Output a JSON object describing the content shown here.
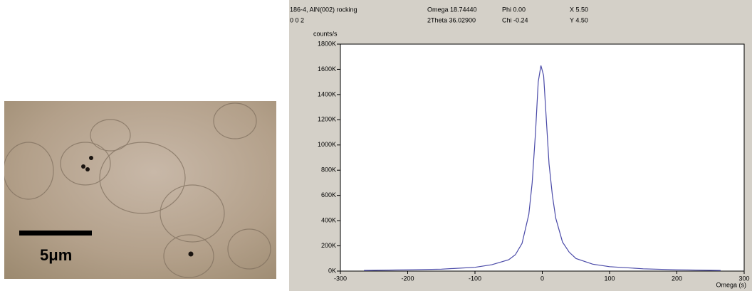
{
  "micrograph": {
    "scale_label": "5μm"
  },
  "header": {
    "sample": "186-4, AlN(002) rocking",
    "hkl": "0 0 2",
    "omega": "Omega 18.74440",
    "two_theta": "2Theta 36.02900",
    "phi": "Phi 0.00",
    "chi": "Chi -0.24",
    "x_pos": "X 5.50",
    "y_pos": "Y 4.50"
  },
  "chart_data": {
    "type": "line",
    "ylabel": "counts/s",
    "xlabel": "Omega (s)",
    "color": "#4a4aa8",
    "x": [
      -265,
      -200,
      -150,
      -100,
      -75,
      -50,
      -40,
      -30,
      -20,
      -15,
      -10,
      -6,
      -2,
      2,
      6,
      10,
      15,
      20,
      30,
      40,
      50,
      75,
      100,
      150,
      200,
      265
    ],
    "values": [
      5000,
      10000,
      15000,
      30000,
      50000,
      90000,
      130000,
      220000,
      450000,
      700000,
      1100000,
      1500000,
      1630000,
      1550000,
      1200000,
      850000,
      600000,
      420000,
      230000,
      150000,
      100000,
      55000,
      35000,
      18000,
      10000,
      5000
    ],
    "xlim": [
      -300,
      300
    ],
    "xticks": [
      -300,
      -200,
      -100,
      0,
      100,
      200,
      300
    ],
    "ylim": [
      0,
      1800000
    ],
    "yticks": [
      {
        "value": 0,
        "label": "0K"
      },
      {
        "value": 200000,
        "label": "200K"
      },
      {
        "value": 400000,
        "label": "400K"
      },
      {
        "value": 600000,
        "label": "600K"
      },
      {
        "value": 800000,
        "label": "800K"
      },
      {
        "value": 1000000,
        "label": "1000K"
      },
      {
        "value": 1200000,
        "label": "1200K"
      },
      {
        "value": 1400000,
        "label": "1400K"
      },
      {
        "value": 1600000,
        "label": "1600K"
      },
      {
        "value": 1800000,
        "label": "1800K"
      }
    ]
  }
}
